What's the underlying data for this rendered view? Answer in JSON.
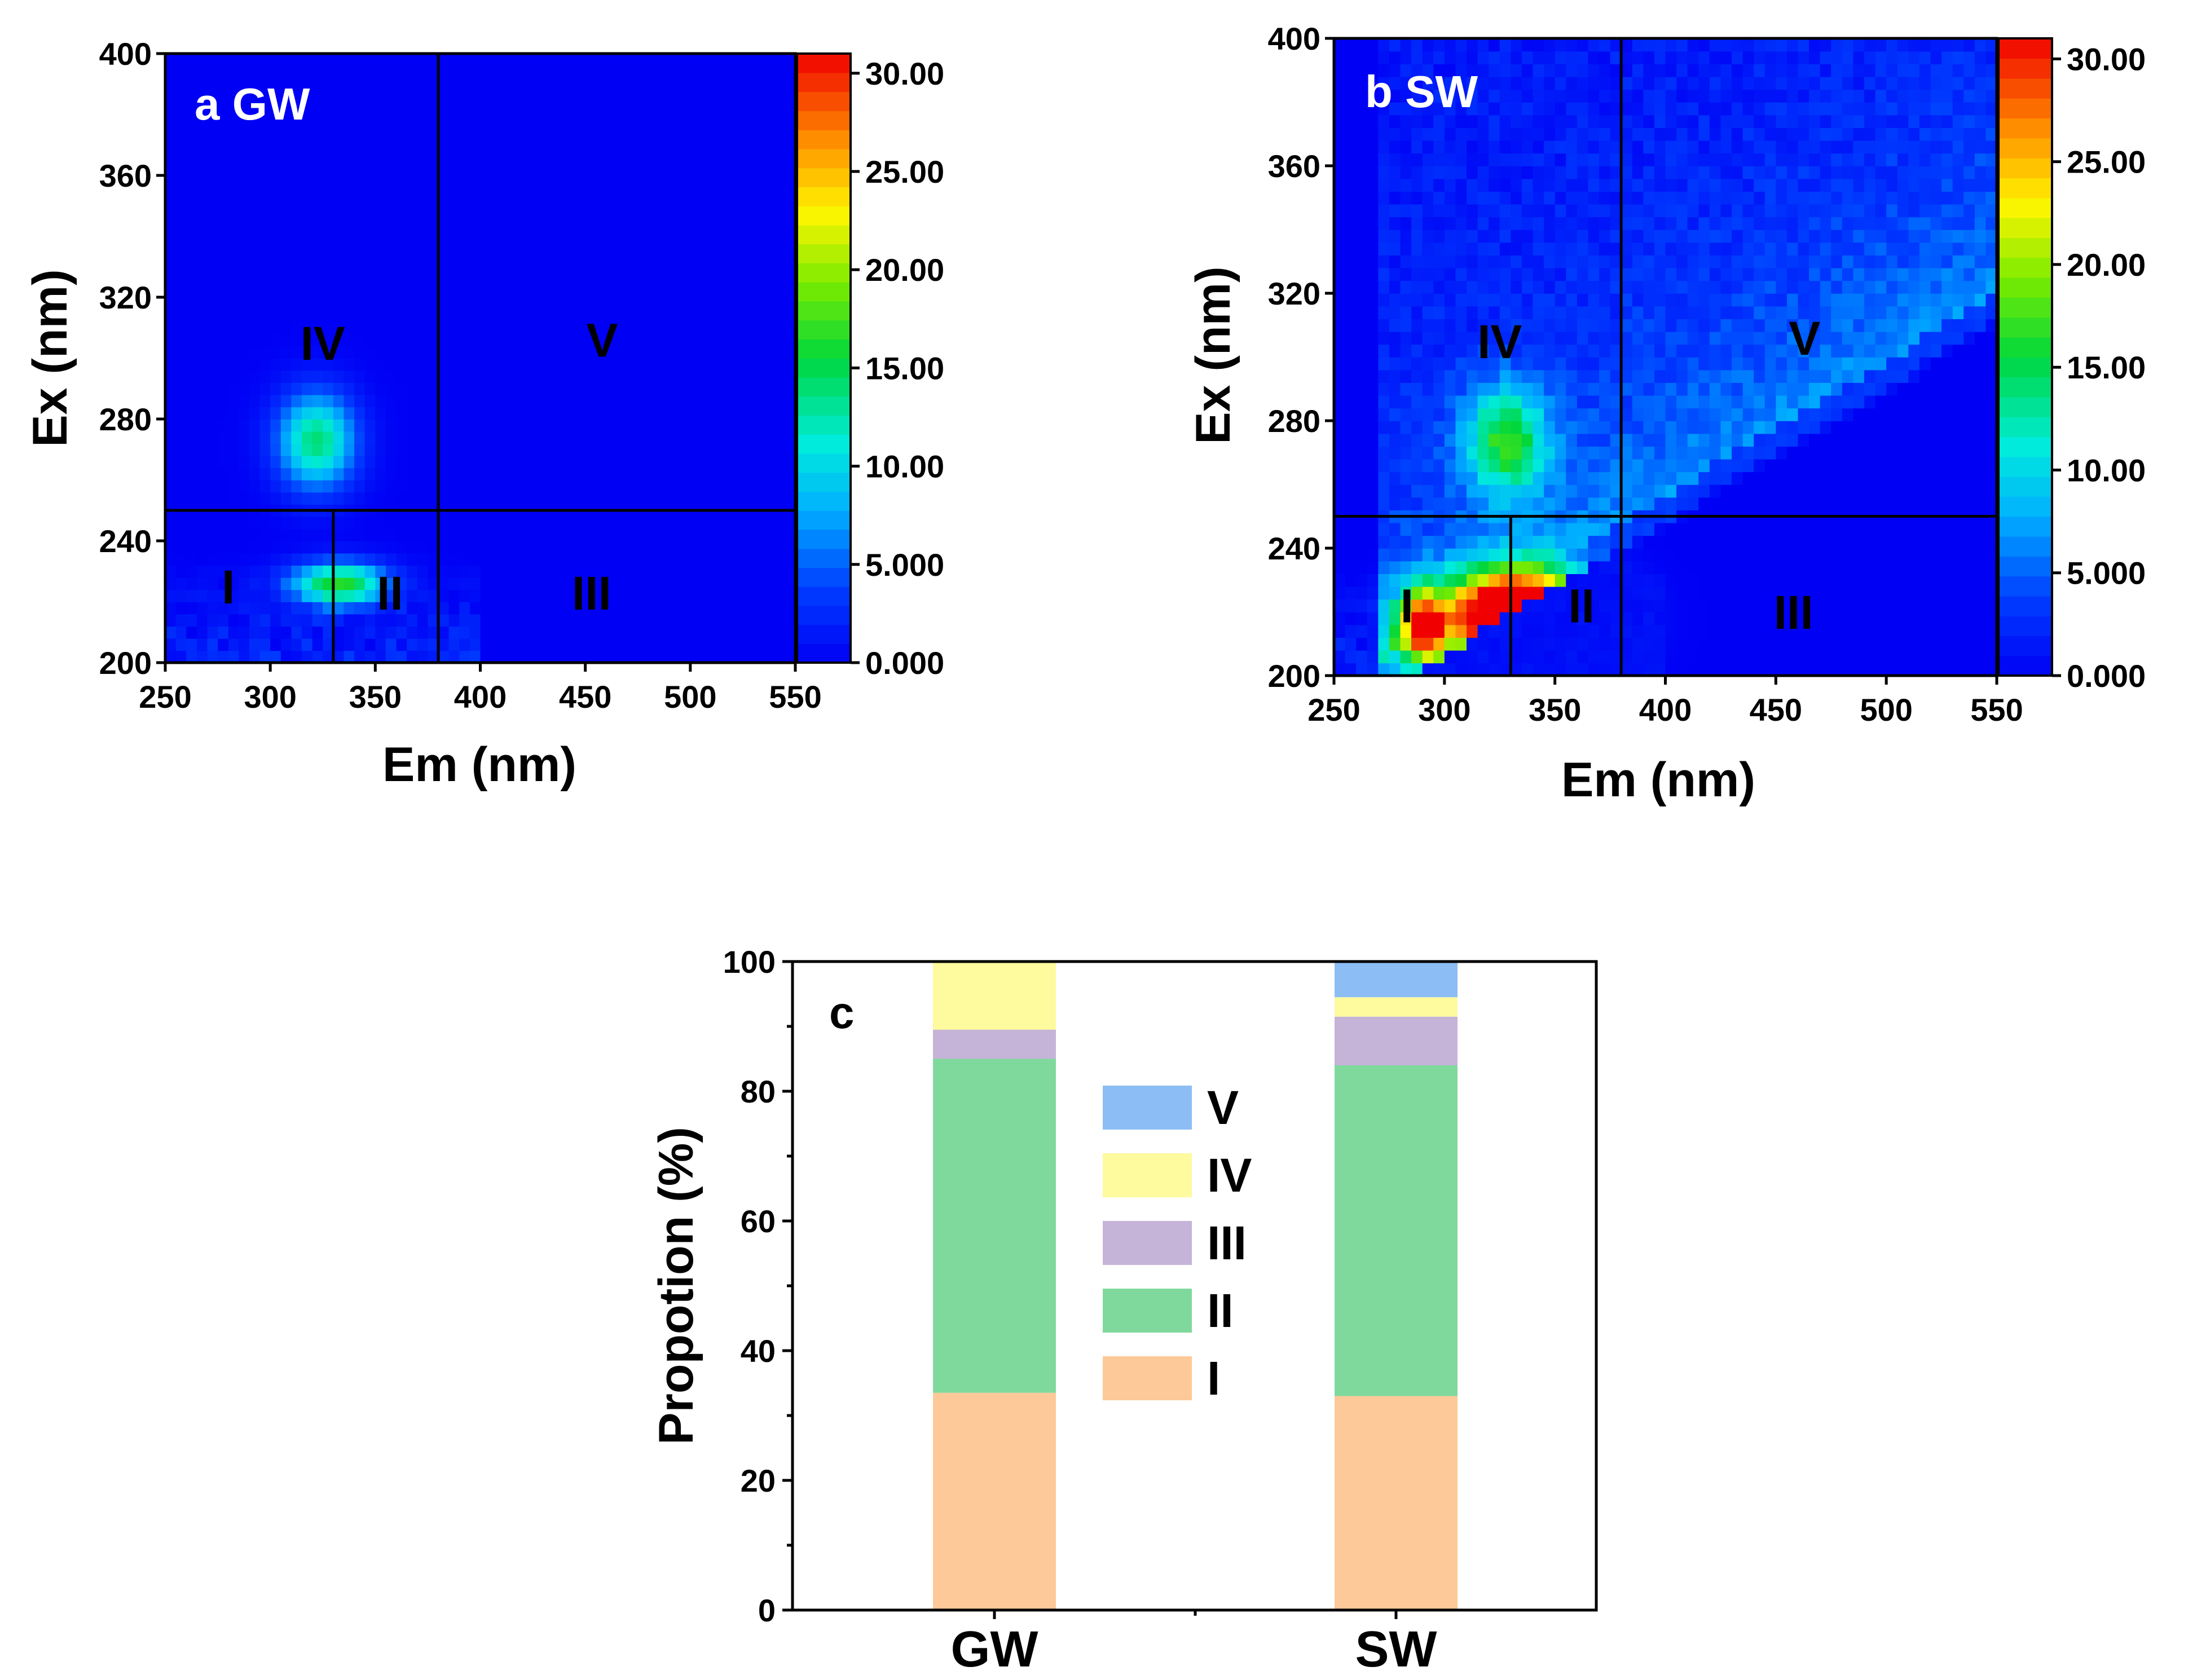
{
  "chart_data": [
    {
      "type": "heatmap",
      "panel": "a GW",
      "title": "a GW",
      "xlabel": "Em (nm)",
      "ylabel": "Ex (nm)",
      "xlim": [
        250,
        550
      ],
      "ylim": [
        200,
        400
      ],
      "xticks": [
        "250",
        "300",
        "350",
        "400",
        "450",
        "500",
        "550"
      ],
      "yticks": [
        "200",
        "240",
        "280",
        "320",
        "360",
        "400"
      ],
      "colorbar": {
        "min": 0,
        "max": 31,
        "ticks": [
          "0.000",
          "5.000",
          "10.00",
          "15.00",
          "20.00",
          "25.00",
          "30.00"
        ],
        "tick_values": [
          0,
          5,
          10,
          15,
          20,
          25,
          30
        ]
      },
      "region_bounds": {
        "em_split_low": 330,
        "em_split_high": 380,
        "ex_split": 250
      },
      "region_labels": [
        {
          "label": "I",
          "em": 280,
          "ex": 225
        },
        {
          "label": "II",
          "em": 357,
          "ex": 223
        },
        {
          "label": "III",
          "em": 453,
          "ex": 223
        },
        {
          "label": "IV",
          "em": 325,
          "ex": 305
        },
        {
          "label": "V",
          "em": 458,
          "ex": 306
        }
      ],
      "peaks": [
        {
          "em": 322,
          "ex": 273,
          "sx": 13,
          "sy": 11,
          "value": 14
        },
        {
          "em": 333,
          "ex": 226,
          "sx": 16,
          "sy": 5,
          "value": 16
        }
      ]
    },
    {
      "type": "heatmap",
      "panel": "b SW",
      "title": "b SW",
      "xlabel": "Em (nm)",
      "ylabel": "Ex (nm)",
      "xlim": [
        250,
        550
      ],
      "ylim": [
        200,
        400
      ],
      "xticks": [
        "250",
        "300",
        "350",
        "400",
        "450",
        "500",
        "550"
      ],
      "yticks": [
        "200",
        "240",
        "280",
        "320",
        "360",
        "400"
      ],
      "colorbar": {
        "min": 0,
        "max": 31,
        "ticks": [
          "0.000",
          "5.000",
          "10.00",
          "15.00",
          "20.00",
          "25.00",
          "30.00"
        ],
        "tick_values": [
          0,
          5,
          10,
          15,
          20,
          25,
          30
        ]
      },
      "region_bounds": {
        "em_split_low": 330,
        "em_split_high": 380,
        "ex_split": 250
      },
      "region_labels": [
        {
          "label": "I",
          "em": 283,
          "ex": 222
        },
        {
          "label": "II",
          "em": 362,
          "ex": 222
        },
        {
          "label": "III",
          "em": 458,
          "ex": 220
        },
        {
          "label": "IV",
          "em": 325,
          "ex": 305
        },
        {
          "label": "V",
          "em": 463,
          "ex": 306
        }
      ],
      "peaks": [
        {
          "em": 328,
          "ex": 274,
          "sx": 13,
          "sy": 12,
          "value": 14
        },
        {
          "em": 335,
          "ex": 218,
          "sx": 22,
          "sy": 10,
          "value": 45
        },
        {
          "em": 290,
          "ex": 215,
          "sx": 8,
          "sy": 8,
          "value": 24
        }
      ]
    },
    {
      "type": "bar",
      "stacked": true,
      "panel": "c",
      "title": "c",
      "categories": [
        "GW",
        "SW"
      ],
      "xlabel": "",
      "ylabel": "Propotion (%)",
      "ylim": [
        0,
        100
      ],
      "yticks": [
        "0",
        "20",
        "40",
        "60",
        "80",
        "100"
      ],
      "legend_position": "center",
      "series": [
        {
          "name": "I",
          "color": "#fdc998",
          "values": [
            33.5,
            33.0
          ]
        },
        {
          "name": "II",
          "color": "#80d99c",
          "values": [
            51.5,
            51.0
          ]
        },
        {
          "name": "III",
          "color": "#c6b3d8",
          "values": [
            4.5,
            7.5
          ]
        },
        {
          "name": "IV",
          "color": "#fefa9e",
          "values": [
            10.5,
            3.0
          ]
        },
        {
          "name": "V",
          "color": "#8cbdf4",
          "values": [
            0.0,
            5.5
          ]
        }
      ]
    }
  ]
}
